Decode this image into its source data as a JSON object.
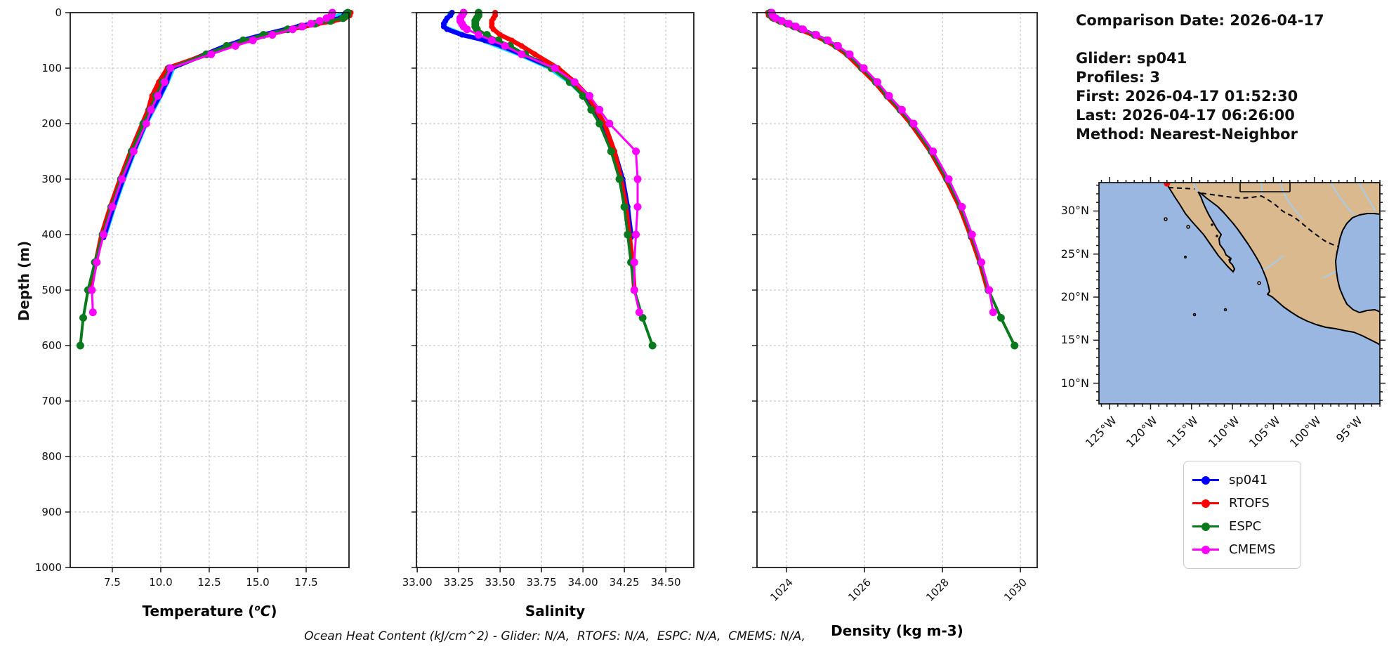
{
  "info_panel": {
    "title": "Comparison Date: 2026-04-17",
    "lines": [
      "Glider: sp041",
      "Profiles: 3",
      "First: 2026-04-17 01:52:30",
      "Last: 2026-04-17 06:26:00",
      "Method: Nearest-Neighbor"
    ]
  },
  "footer": {
    "ohc_text": "Ocean Heat Content (kJ/cm^2) - Glider: N/A,  RTOFS: N/A,  ESPC: N/A,  CMEMS: N/A,"
  },
  "depth_axis": {
    "label": "Depth (m)",
    "ticks": [
      0,
      100,
      200,
      300,
      400,
      500,
      600,
      700,
      800,
      900,
      1000
    ]
  },
  "legend": {
    "items": [
      {
        "label": "sp041",
        "color": "#0000ff"
      },
      {
        "label": "RTOFS",
        "color": "#ff0000"
      },
      {
        "label": "ESPC",
        "color": "#0a7a1e"
      },
      {
        "label": "CMEMS",
        "color": "#ff00ff"
      }
    ]
  },
  "chart_data": {
    "type": "line",
    "ylabel": "Depth (m)",
    "ylim": [
      0,
      1000
    ],
    "grid": true,
    "charts": [
      {
        "id": "temperature",
        "xlabel": "Temperature (°C)",
        "xlabel_parts": {
          "pre": "Temperature (",
          "sup": "o",
          "ital": "C",
          "post": ")"
        },
        "xlim": [
          5.33,
          19.71
        ],
        "xticks": [
          7.5,
          10.0,
          12.5,
          15.0,
          17.5
        ],
        "tick_decimals": 1,
        "rotate_ticks": false,
        "series": [
          {
            "name": "sp041-aux-profile",
            "color": "#00e5ff",
            "lw": 3.5,
            "mr": 0,
            "in_legend": false,
            "depths": [
              0,
              25,
              50,
              75,
              100,
              125,
              150,
              200,
              250,
              300,
              350,
              400
            ],
            "values": [
              19.5,
              17.2,
              14.35,
              12.45,
              10.7,
              10.4,
              10.05,
              9.3,
              8.7,
              8.15,
              7.65,
              7.2
            ]
          },
          {
            "name": "sp041",
            "color": "#0000ff",
            "lw": 6.5,
            "mr": 4,
            "in_legend": true,
            "depths": [
              0,
              5,
              10,
              15,
              20,
              25,
              30,
              40,
              50,
              60,
              75,
              100,
              125,
              150,
              175,
              200,
              250,
              300,
              350,
              400,
              405
            ],
            "values": [
              19.55,
              19.45,
              19.25,
              18.6,
              17.8,
              17.1,
              16.45,
              15.25,
              14.2,
              13.35,
              12.3,
              10.55,
              10.3,
              9.95,
              9.55,
              9.2,
              8.6,
              8.05,
              7.55,
              7.1,
              7.05
            ]
          },
          {
            "name": "RTOFS",
            "color": "#ff0000",
            "lw": 6.5,
            "mr": 4,
            "in_legend": true,
            "depths": [
              0,
              5,
              10,
              15,
              20,
              25,
              30,
              40,
              50,
              60,
              75,
              100,
              125,
              150,
              175,
              200,
              250,
              300,
              350,
              400,
              450,
              500
            ],
            "values": [
              19.8,
              19.75,
              19.5,
              18.9,
              18.1,
              17.4,
              16.7,
              15.5,
              14.55,
              13.6,
              12.4,
              10.35,
              9.9,
              9.55,
              9.35,
              9.05,
              8.45,
              7.9,
              7.4,
              6.95,
              6.65,
              6.35
            ]
          },
          {
            "name": "ESPC",
            "color": "#0a7a1e",
            "lw": 4,
            "mr": 5.5,
            "in_legend": true,
            "depths": [
              0,
              5,
              10,
              15,
              20,
              25,
              30,
              40,
              50,
              60,
              75,
              100,
              125,
              150,
              175,
              200,
              250,
              300,
              350,
              400,
              450,
              500,
              550,
              600
            ],
            "values": [
              19.65,
              19.6,
              19.4,
              18.75,
              17.95,
              17.25,
              16.55,
              15.3,
              14.25,
              13.4,
              12.35,
              10.45,
              10.1,
              9.75,
              9.45,
              9.1,
              8.5,
              7.95,
              7.45,
              7.0,
              6.6,
              6.25,
              6.0,
              5.85
            ]
          },
          {
            "name": "CMEMS",
            "color": "#ff00ff",
            "lw": 3,
            "mr": 5.5,
            "in_legend": true,
            "depths": [
              0,
              5,
              10,
              15,
              20,
              25,
              30,
              40,
              50,
              60,
              75,
              100,
              125,
              150,
              175,
              200,
              250,
              300,
              350,
              400,
              450,
              500,
              540
            ],
            "values": [
              18.85,
              18.8,
              18.55,
              18.2,
              17.75,
              17.3,
              16.8,
              15.75,
              14.75,
              13.85,
              12.6,
              10.5,
              10.2,
              9.85,
              9.5,
              9.25,
              8.6,
              8.0,
              7.5,
              7.05,
              6.7,
              6.45,
              6.5
            ]
          }
        ]
      },
      {
        "id": "salinity",
        "xlabel": "Salinity",
        "xlim": [
          32.995,
          34.669
        ],
        "xticks": [
          33.0,
          33.25,
          33.5,
          33.75,
          34.0,
          34.25,
          34.5
        ],
        "tick_decimals": 2,
        "rotate_ticks": false,
        "series": [
          {
            "name": "sp041-aux-profile",
            "color": "#00e5ff",
            "lw": 3.5,
            "mr": 0,
            "in_legend": false,
            "depths": [
              0,
              25,
              50,
              75,
              100,
              125,
              150,
              200,
              250,
              300,
              350,
              400
            ],
            "values": [
              33.19,
              33.17,
              33.38,
              33.6,
              33.79,
              33.91,
              34.0,
              34.11,
              34.18,
              34.23,
              34.27,
              34.3
            ]
          },
          {
            "name": "sp041",
            "color": "#0000ff",
            "lw": 6.5,
            "mr": 4,
            "in_legend": true,
            "depths": [
              0,
              5,
              10,
              15,
              20,
              25,
              30,
              40,
              50,
              60,
              75,
              100,
              125,
              150,
              175,
              200,
              250,
              300,
              350,
              400,
              405
            ],
            "values": [
              33.21,
              33.2,
              33.18,
              33.17,
              33.16,
              33.16,
              33.18,
              33.27,
              33.41,
              33.51,
              33.63,
              33.82,
              33.93,
              34.01,
              34.07,
              34.12,
              34.19,
              34.24,
              34.27,
              34.29,
              34.29
            ]
          },
          {
            "name": "RTOFS",
            "color": "#ff0000",
            "lw": 6.5,
            "mr": 4,
            "in_legend": true,
            "depths": [
              0,
              5,
              10,
              15,
              20,
              25,
              30,
              40,
              50,
              60,
              75,
              100,
              125,
              150,
              175,
              200,
              250,
              300,
              350,
              400,
              450,
              500
            ],
            "values": [
              33.47,
              33.47,
              33.46,
              33.45,
              33.45,
              33.45,
              33.46,
              33.5,
              33.57,
              33.63,
              33.71,
              33.85,
              33.95,
              34.03,
              34.08,
              34.13,
              34.19,
              34.23,
              34.26,
              34.28,
              34.3,
              34.31
            ]
          },
          {
            "name": "ESPC",
            "color": "#0a7a1e",
            "lw": 4,
            "mr": 5.5,
            "in_legend": true,
            "depths": [
              0,
              5,
              10,
              15,
              20,
              25,
              30,
              40,
              50,
              60,
              75,
              100,
              125,
              150,
              175,
              200,
              250,
              300,
              350,
              400,
              450,
              500,
              550,
              600
            ],
            "values": [
              33.37,
              33.37,
              33.36,
              33.35,
              33.35,
              33.35,
              33.36,
              33.42,
              33.49,
              33.56,
              33.65,
              33.81,
              33.92,
              34.0,
              34.05,
              34.1,
              34.17,
              34.22,
              34.25,
              34.27,
              34.29,
              34.31,
              34.36,
              34.42
            ]
          },
          {
            "name": "CMEMS",
            "color": "#ff00ff",
            "lw": 3,
            "mr": 5.5,
            "in_legend": true,
            "depths": [
              0,
              5,
              10,
              15,
              20,
              25,
              30,
              40,
              50,
              60,
              75,
              100,
              125,
              150,
              175,
              200,
              250,
              300,
              350,
              400,
              450,
              500,
              540
            ],
            "values": [
              33.28,
              33.27,
              33.26,
              33.26,
              33.27,
              33.28,
              33.3,
              33.37,
              33.45,
              33.53,
              33.63,
              33.83,
              33.95,
              34.04,
              34.1,
              34.16,
              34.32,
              34.33,
              34.33,
              34.32,
              34.31,
              34.31,
              34.34
            ]
          }
        ]
      },
      {
        "id": "density",
        "xlabel": "Density (kg m-3)",
        "xlim": [
          1023.24,
          1030.43
        ],
        "xticks": [
          1024,
          1026,
          1028,
          1030
        ],
        "tick_decimals": 0,
        "rotate_ticks": true,
        "series": [
          {
            "name": "sp041-aux-profile",
            "color": "#00e5ff",
            "lw": 3.5,
            "mr": 0,
            "in_legend": false,
            "depths": [
              0,
              25,
              50,
              75,
              100,
              125,
              150,
              200,
              250,
              300,
              350,
              400
            ],
            "values": [
              1023.6,
              1024.22,
              1025.04,
              1025.6,
              1025.96,
              1026.31,
              1026.61,
              1027.24,
              1027.74,
              1028.14,
              1028.49,
              1028.76
            ]
          },
          {
            "name": "sp041",
            "color": "#0000ff",
            "lw": 6.5,
            "mr": 4,
            "in_legend": true,
            "depths": [
              0,
              5,
              10,
              15,
              20,
              25,
              30,
              40,
              50,
              60,
              75,
              100,
              125,
              150,
              175,
              200,
              250,
              300,
              350,
              400,
              405
            ],
            "values": [
              1023.56,
              1023.58,
              1023.66,
              1023.82,
              1024.0,
              1024.18,
              1024.36,
              1024.7,
              1025.0,
              1025.26,
              1025.56,
              1025.92,
              1026.27,
              1026.57,
              1026.9,
              1027.2,
              1027.7,
              1028.1,
              1028.45,
              1028.72,
              1028.73
            ]
          },
          {
            "name": "RTOFS",
            "color": "#ff0000",
            "lw": 6.5,
            "mr": 4,
            "in_legend": true,
            "depths": [
              0,
              5,
              10,
              15,
              20,
              25,
              30,
              40,
              50,
              60,
              75,
              100,
              125,
              150,
              175,
              200,
              250,
              300,
              350,
              400,
              450,
              500
            ],
            "values": [
              1023.52,
              1023.54,
              1023.62,
              1023.78,
              1023.97,
              1024.15,
              1024.33,
              1024.68,
              1024.98,
              1025.24,
              1025.54,
              1025.9,
              1026.26,
              1026.56,
              1026.89,
              1027.19,
              1027.69,
              1028.09,
              1028.44,
              1028.71,
              1028.96,
              1029.16
            ]
          },
          {
            "name": "ESPC",
            "color": "#0a7a1e",
            "lw": 4,
            "mr": 5.5,
            "in_legend": true,
            "depths": [
              0,
              5,
              10,
              15,
              20,
              25,
              30,
              40,
              50,
              60,
              75,
              100,
              125,
              150,
              175,
              200,
              250,
              300,
              350,
              400,
              450,
              500,
              550,
              600
            ],
            "values": [
              1023.58,
              1023.6,
              1023.68,
              1023.84,
              1024.02,
              1024.2,
              1024.38,
              1024.72,
              1025.02,
              1025.28,
              1025.58,
              1025.94,
              1026.29,
              1026.59,
              1026.92,
              1027.22,
              1027.72,
              1028.12,
              1028.47,
              1028.74,
              1028.98,
              1029.18,
              1029.5,
              1029.85
            ]
          },
          {
            "name": "CMEMS",
            "color": "#ff00ff",
            "lw": 3,
            "mr": 5.5,
            "in_legend": true,
            "depths": [
              0,
              5,
              10,
              15,
              20,
              25,
              30,
              40,
              50,
              60,
              75,
              100,
              125,
              150,
              175,
              200,
              250,
              300,
              350,
              400,
              450,
              500,
              540
            ],
            "values": [
              1023.62,
              1023.64,
              1023.72,
              1023.88,
              1024.06,
              1024.24,
              1024.42,
              1024.76,
              1025.06,
              1025.32,
              1025.62,
              1025.98,
              1026.33,
              1026.63,
              1026.96,
              1027.26,
              1027.76,
              1028.16,
              1028.5,
              1028.76,
              1029.0,
              1029.2,
              1029.3
            ]
          }
        ]
      }
    ]
  },
  "map": {
    "extent": {
      "lon_min": -126.3,
      "lon_max": -92.0,
      "lat_min": 7.6,
      "lat_max": 33.3
    },
    "lat_ticks": [
      {
        "value": 30,
        "label": "30°N"
      },
      {
        "value": 25,
        "label": "25°N"
      },
      {
        "value": 20,
        "label": "20°N"
      },
      {
        "value": 15,
        "label": "15°N"
      },
      {
        "value": 10,
        "label": "10°N"
      }
    ],
    "lon_ticks": [
      {
        "value": -125,
        "label": "125°W"
      },
      {
        "value": -120,
        "label": "120°W"
      },
      {
        "value": -115,
        "label": "115°W"
      },
      {
        "value": -110,
        "label": "110°W"
      },
      {
        "value": -105,
        "label": "105°W"
      },
      {
        "value": -100,
        "label": "100°W"
      },
      {
        "value": -95,
        "label": "95°W"
      }
    ],
    "glider_marker": {
      "lat": 33.2,
      "lon": -118.0,
      "color": "#ff0000"
    },
    "ocean_color": "#99b7e1",
    "land_color": "#dab98e",
    "coast_color": "#000000",
    "river_color": "#a8cbe8"
  }
}
